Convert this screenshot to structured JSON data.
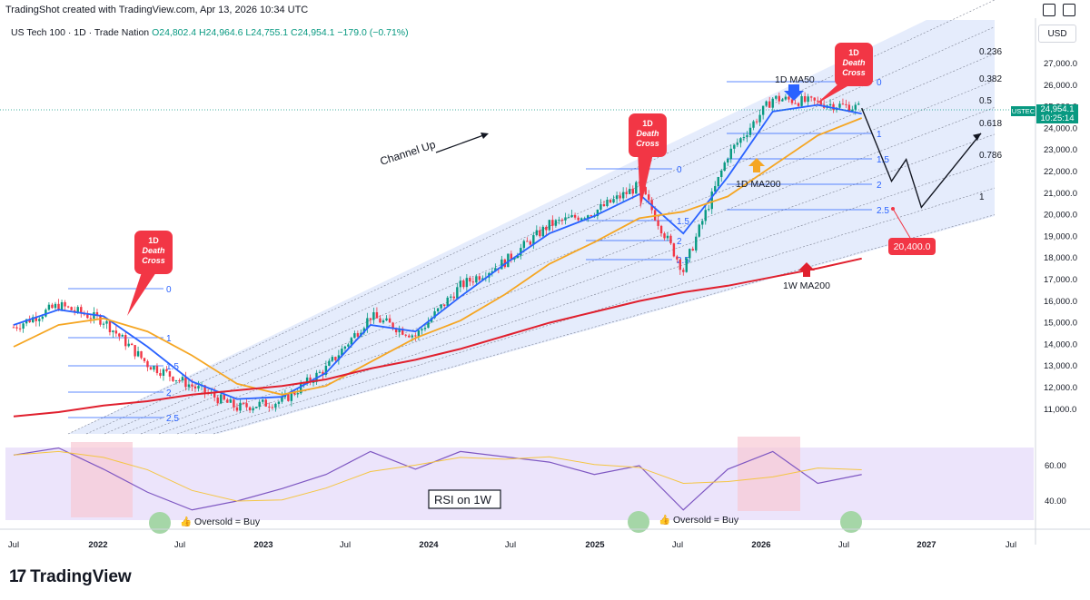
{
  "header": {
    "created_by": "TradingShot created with TradingView.com, Apr 13, 2026 10:34 UTC"
  },
  "symbol": {
    "name": "US Tech 100 · 1D · Trade Nation",
    "ohlc": "O24,802.4  H24,964.6  L24,755.1  C24,954.1  −179.0 (−0.71%)"
  },
  "toolbar": {
    "currency": "USD",
    "icons": [
      "camera-icon",
      "share-icon"
    ]
  },
  "price_scale": {
    "labels": [
      "27,000.0",
      "26,000.0",
      "25,000.0",
      "24,000.0",
      "23,000.0",
      "22,000.0",
      "21,000.0",
      "20,000.0",
      "19,000.0",
      "18,000.0",
      "17,000.0",
      "16,000.0",
      "15,000.0",
      "14,000.0",
      "13,000.0",
      "12,000.0",
      "11,000.0"
    ],
    "rsi_labels": [
      "60.00",
      "40.00"
    ],
    "last_price": "24,954.1",
    "countdown": "10:25:14",
    "ticker": "USTEC"
  },
  "time_axis": [
    "Jul",
    "2022",
    "Jul",
    "2023",
    "Jul",
    "2024",
    "Jul",
    "2025",
    "Jul",
    "2026",
    "Jul",
    "2027",
    "Jul"
  ],
  "annotations": {
    "channel_up": "Channel Up",
    "death_cross": [
      "1D",
      "Death",
      "Cross"
    ],
    "ma50_label": "1D MA50",
    "ma200_label": "1D MA200",
    "w_ma200_label": "1W MA200",
    "target_label": "20,400.0",
    "rsi_title": "RSI on 1W",
    "oversold": "Oversold = Buy"
  },
  "fib_right": [
    "0.236",
    "0.382",
    "0.5",
    "0.618",
    "0.786",
    "1"
  ],
  "fib_ext_labels": [
    "0",
    "1",
    "1.5",
    "2",
    "2.5"
  ],
  "colors": {
    "up": "#089981",
    "down": "#f23645",
    "ma50": "#2962ff",
    "ma200": "#f5a623",
    "wma200": "#e0202e",
    "channel_fill": "#dce6fb",
    "rsi_line": "#7e57c2",
    "rsi_ma": "#f5c542",
    "rsi_band": "#ece4fb",
    "callout": "#f23645",
    "oversold_circle": "#a5d6a7"
  },
  "branding": {
    "logo_text": "TradingView"
  },
  "chart_data": {
    "type": "candlestick",
    "x": [
      "2021-07",
      "2021-10",
      "2022-01",
      "2022-04",
      "2022-07",
      "2022-10",
      "2023-01",
      "2023-04",
      "2023-07",
      "2023-10",
      "2024-01",
      "2024-04",
      "2024-07",
      "2024-10",
      "2025-01",
      "2025-04",
      "2025-07",
      "2025-10",
      "2026-01",
      "2026-04"
    ],
    "close": [
      14900,
      15900,
      15200,
      13200,
      12200,
      11200,
      11500,
      13000,
      15400,
      14500,
      16800,
      17900,
      19600,
      20200,
      21400,
      17500,
      22800,
      25400,
      25200,
      24954.1
    ],
    "ylim": [
      10500,
      27800
    ],
    "series": [
      {
        "name": "1D MA50",
        "values": [
          15000,
          15700,
          15400,
          14000,
          12400,
          11600,
          11700,
          12800,
          15000,
          14700,
          16300,
          17800,
          19200,
          20000,
          21000,
          19200,
          21800,
          24800,
          25100,
          24700
        ]
      },
      {
        "name": "1D MA200",
        "values": [
          14000,
          15000,
          15300,
          14700,
          13600,
          12300,
          11800,
          12200,
          13300,
          14400,
          15200,
          16400,
          17800,
          18800,
          19900,
          20200,
          20900,
          22300,
          23700,
          24500
        ]
      },
      {
        "name": "1W MA200",
        "values": [
          10800,
          11000,
          11300,
          11500,
          11800,
          12000,
          12200,
          12500,
          13000,
          13400,
          13900,
          14500,
          15100,
          15600,
          16100,
          16500,
          16800,
          17200,
          17600,
          18050
        ]
      }
    ],
    "projection": [
      {
        "x": "2026-04",
        "y": 24954
      },
      {
        "x": "2026-06",
        "y": 21600
      },
      {
        "x": "2026-07",
        "y": 22600
      },
      {
        "x": "2026-08",
        "y": 20400
      },
      {
        "x": "2026-12",
        "y": 23800
      }
    ],
    "rsi": {
      "title": "RSI on 1W",
      "ylim": [
        30,
        80
      ],
      "values": [
        66,
        70,
        58,
        45,
        35,
        40,
        47,
        55,
        68,
        58,
        68,
        65,
        62,
        55,
        60,
        35,
        58,
        68,
        50,
        55
      ]
    }
  }
}
